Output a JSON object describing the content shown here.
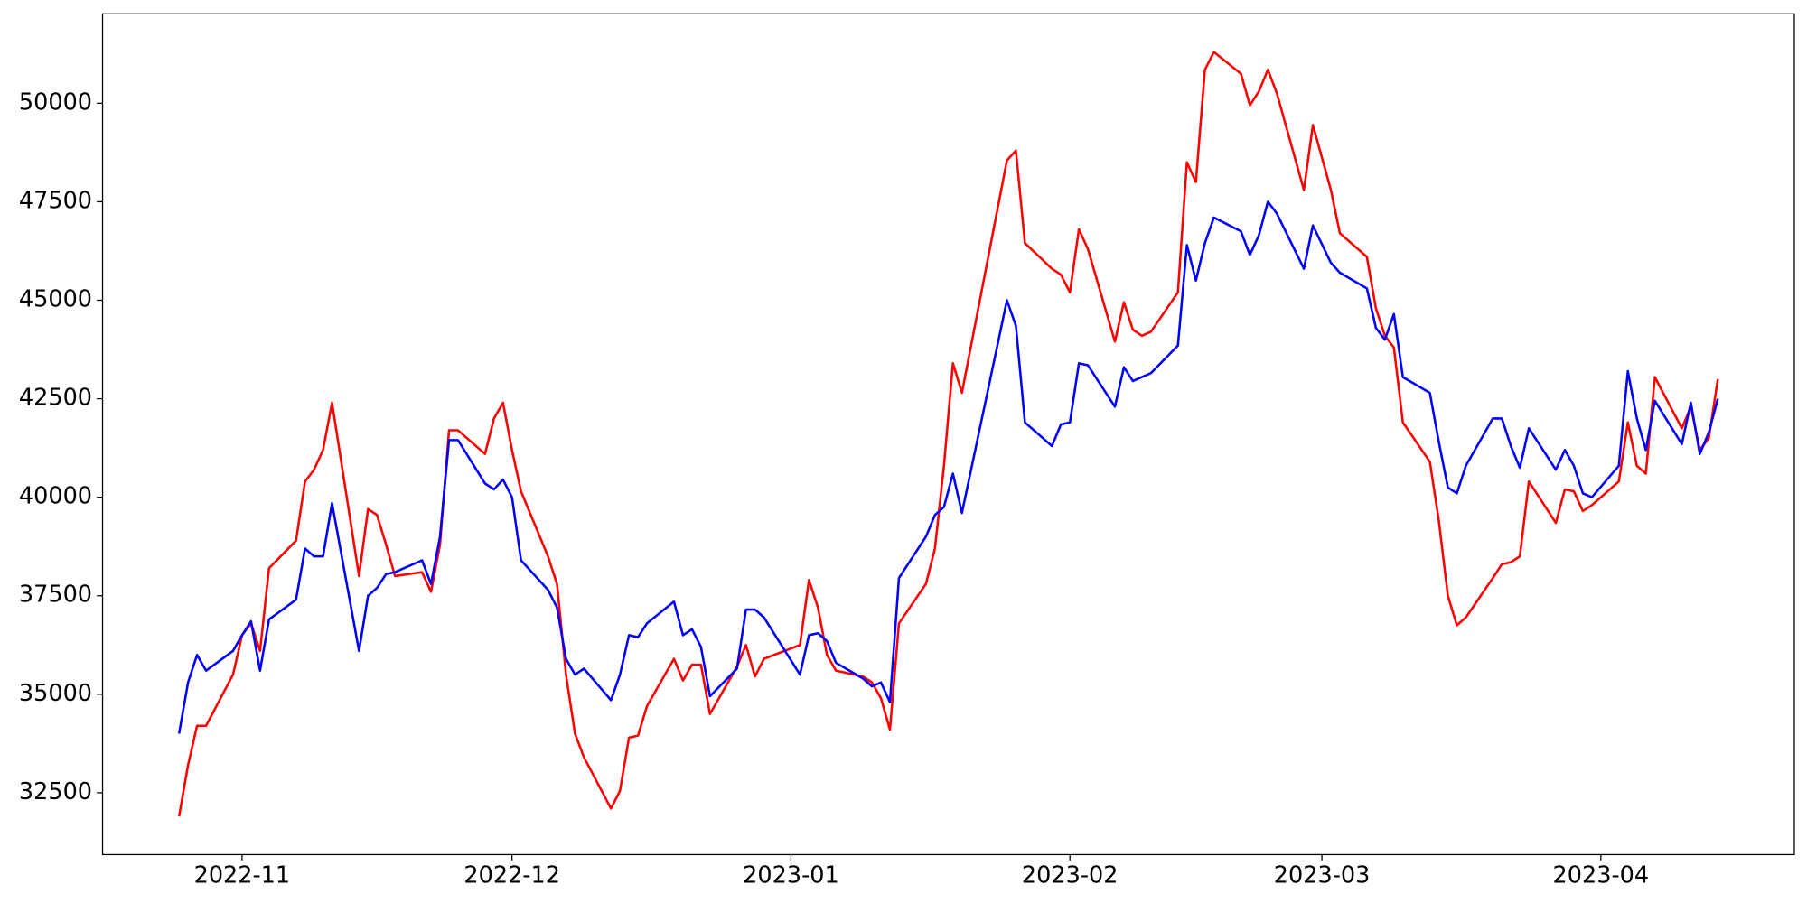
{
  "chart_data": {
    "type": "line",
    "x": [
      19290,
      19291,
      19292,
      19293,
      19296,
      19297,
      19298,
      19299,
      19300,
      19303,
      19304,
      19305,
      19306,
      19307,
      19310,
      19311,
      19312,
      19313,
      19314,
      19317,
      19318,
      19319,
      19320,
      19321,
      19324,
      19325,
      19326,
      19327,
      19328,
      19331,
      19332,
      19333,
      19334,
      19335,
      19338,
      19339,
      19340,
      19341,
      19342,
      19345,
      19346,
      19347,
      19348,
      19349,
      19352,
      19353,
      19354,
      19355,
      19359,
      19360,
      19361,
      19362,
      19363,
      19366,
      19367,
      19368,
      19369,
      19370,
      19373,
      19374,
      19375,
      19376,
      19377,
      19382,
      19383,
      19384,
      19387,
      19388,
      19389,
      19390,
      19391,
      19394,
      19395,
      19396,
      19397,
      19398,
      19401,
      19402,
      19403,
      19404,
      19405,
      19408,
      19409,
      19410,
      19411,
      19412,
      19415,
      19416,
      19418,
      19419,
      19422,
      19423,
      19424,
      19425,
      19426,
      19429,
      19430,
      19431,
      19432,
      19433,
      19436,
      19437,
      19438,
      19439,
      19440,
      19443,
      19444,
      19445,
      19446,
      19447,
      19450,
      19451,
      19452,
      19453,
      19454,
      19457,
      19458,
      19459,
      19460,
      19461
    ],
    "series": [
      {
        "color": "#ff0000",
        "values": [
          31900,
          33200,
          34200,
          34200,
          35500,
          36500,
          36800,
          36100,
          38200,
          38900,
          40400,
          40700,
          41200,
          42400,
          38000,
          39700,
          39550,
          38800,
          38000,
          38100,
          37600,
          38800,
          41700,
          41700,
          41100,
          42000,
          42400,
          41200,
          40150,
          38500,
          37800,
          35500,
          34000,
          33400,
          32100,
          32550,
          33900,
          33950,
          34700,
          35900,
          35350,
          35750,
          35750,
          34500,
          35700,
          36250,
          35450,
          35900,
          36250,
          37900,
          37200,
          36000,
          35600,
          35450,
          35300,
          34900,
          34100,
          36800,
          37800,
          38700,
          40800,
          43400,
          42650,
          48550,
          48800,
          46450,
          45800,
          45650,
          45200,
          46800,
          46300,
          43950,
          44950,
          44250,
          44100,
          44200,
          45200,
          48500,
          48000,
          50850,
          51300,
          50750,
          49950,
          50300,
          50850,
          50250,
          47800,
          49450,
          47800,
          46700,
          46100,
          44800,
          44100,
          43800,
          41900,
          40900,
          39400,
          37500,
          36750,
          36950,
          37950,
          38300,
          38350,
          38500,
          40400,
          39350,
          40200,
          40150,
          39650,
          39800,
          40400,
          41900,
          40800,
          40600,
          43050,
          41750,
          42300,
          41200,
          41500,
          43000
        ]
      },
      {
        "color": "#0000ff",
        "values": [
          34000,
          35300,
          36000,
          35600,
          36100,
          36500,
          36850,
          35600,
          36900,
          37400,
          38700,
          38500,
          38500,
          39850,
          36100,
          37500,
          37700,
          38050,
          38100,
          38400,
          37800,
          39000,
          41450,
          41450,
          40350,
          40200,
          40450,
          40000,
          38400,
          37650,
          37200,
          35900,
          35500,
          35650,
          34850,
          35500,
          36500,
          36450,
          36800,
          37350,
          36500,
          36650,
          36200,
          34950,
          35650,
          37150,
          37150,
          36950,
          35500,
          36500,
          36550,
          36350,
          35800,
          35400,
          35200,
          35300,
          34800,
          37950,
          39000,
          39550,
          39750,
          40600,
          39600,
          45000,
          44350,
          41900,
          41300,
          41850,
          41900,
          43400,
          43350,
          42300,
          43300,
          42950,
          43050,
          43150,
          43850,
          46400,
          45500,
          46450,
          47100,
          46750,
          46150,
          46650,
          47500,
          47200,
          45800,
          46900,
          45950,
          45700,
          45300,
          44300,
          44000,
          44650,
          43050,
          42650,
          41400,
          40250,
          40100,
          40800,
          42000,
          42000,
          41300,
          40750,
          41750,
          40700,
          41200,
          40800,
          40100,
          40000,
          40800,
          43200,
          42000,
          41200,
          42450,
          41350,
          42400,
          41100,
          41650,
          42500
        ]
      }
    ],
    "xlim": [
      19281.5,
      19469.5
    ],
    "xticks": [
      {
        "value": 19297,
        "label": "2022-11"
      },
      {
        "value": 19327,
        "label": "2022-12"
      },
      {
        "value": 19358,
        "label": "2023-01"
      },
      {
        "value": 19389,
        "label": "2023-02"
      },
      {
        "value": 19417,
        "label": "2023-03"
      },
      {
        "value": 19448,
        "label": "2023-04"
      }
    ],
    "ylim": [
      30930,
      52270
    ],
    "yticks": [
      32500,
      35000,
      37500,
      40000,
      42500,
      45000,
      47500,
      50000
    ],
    "grid": false
  }
}
